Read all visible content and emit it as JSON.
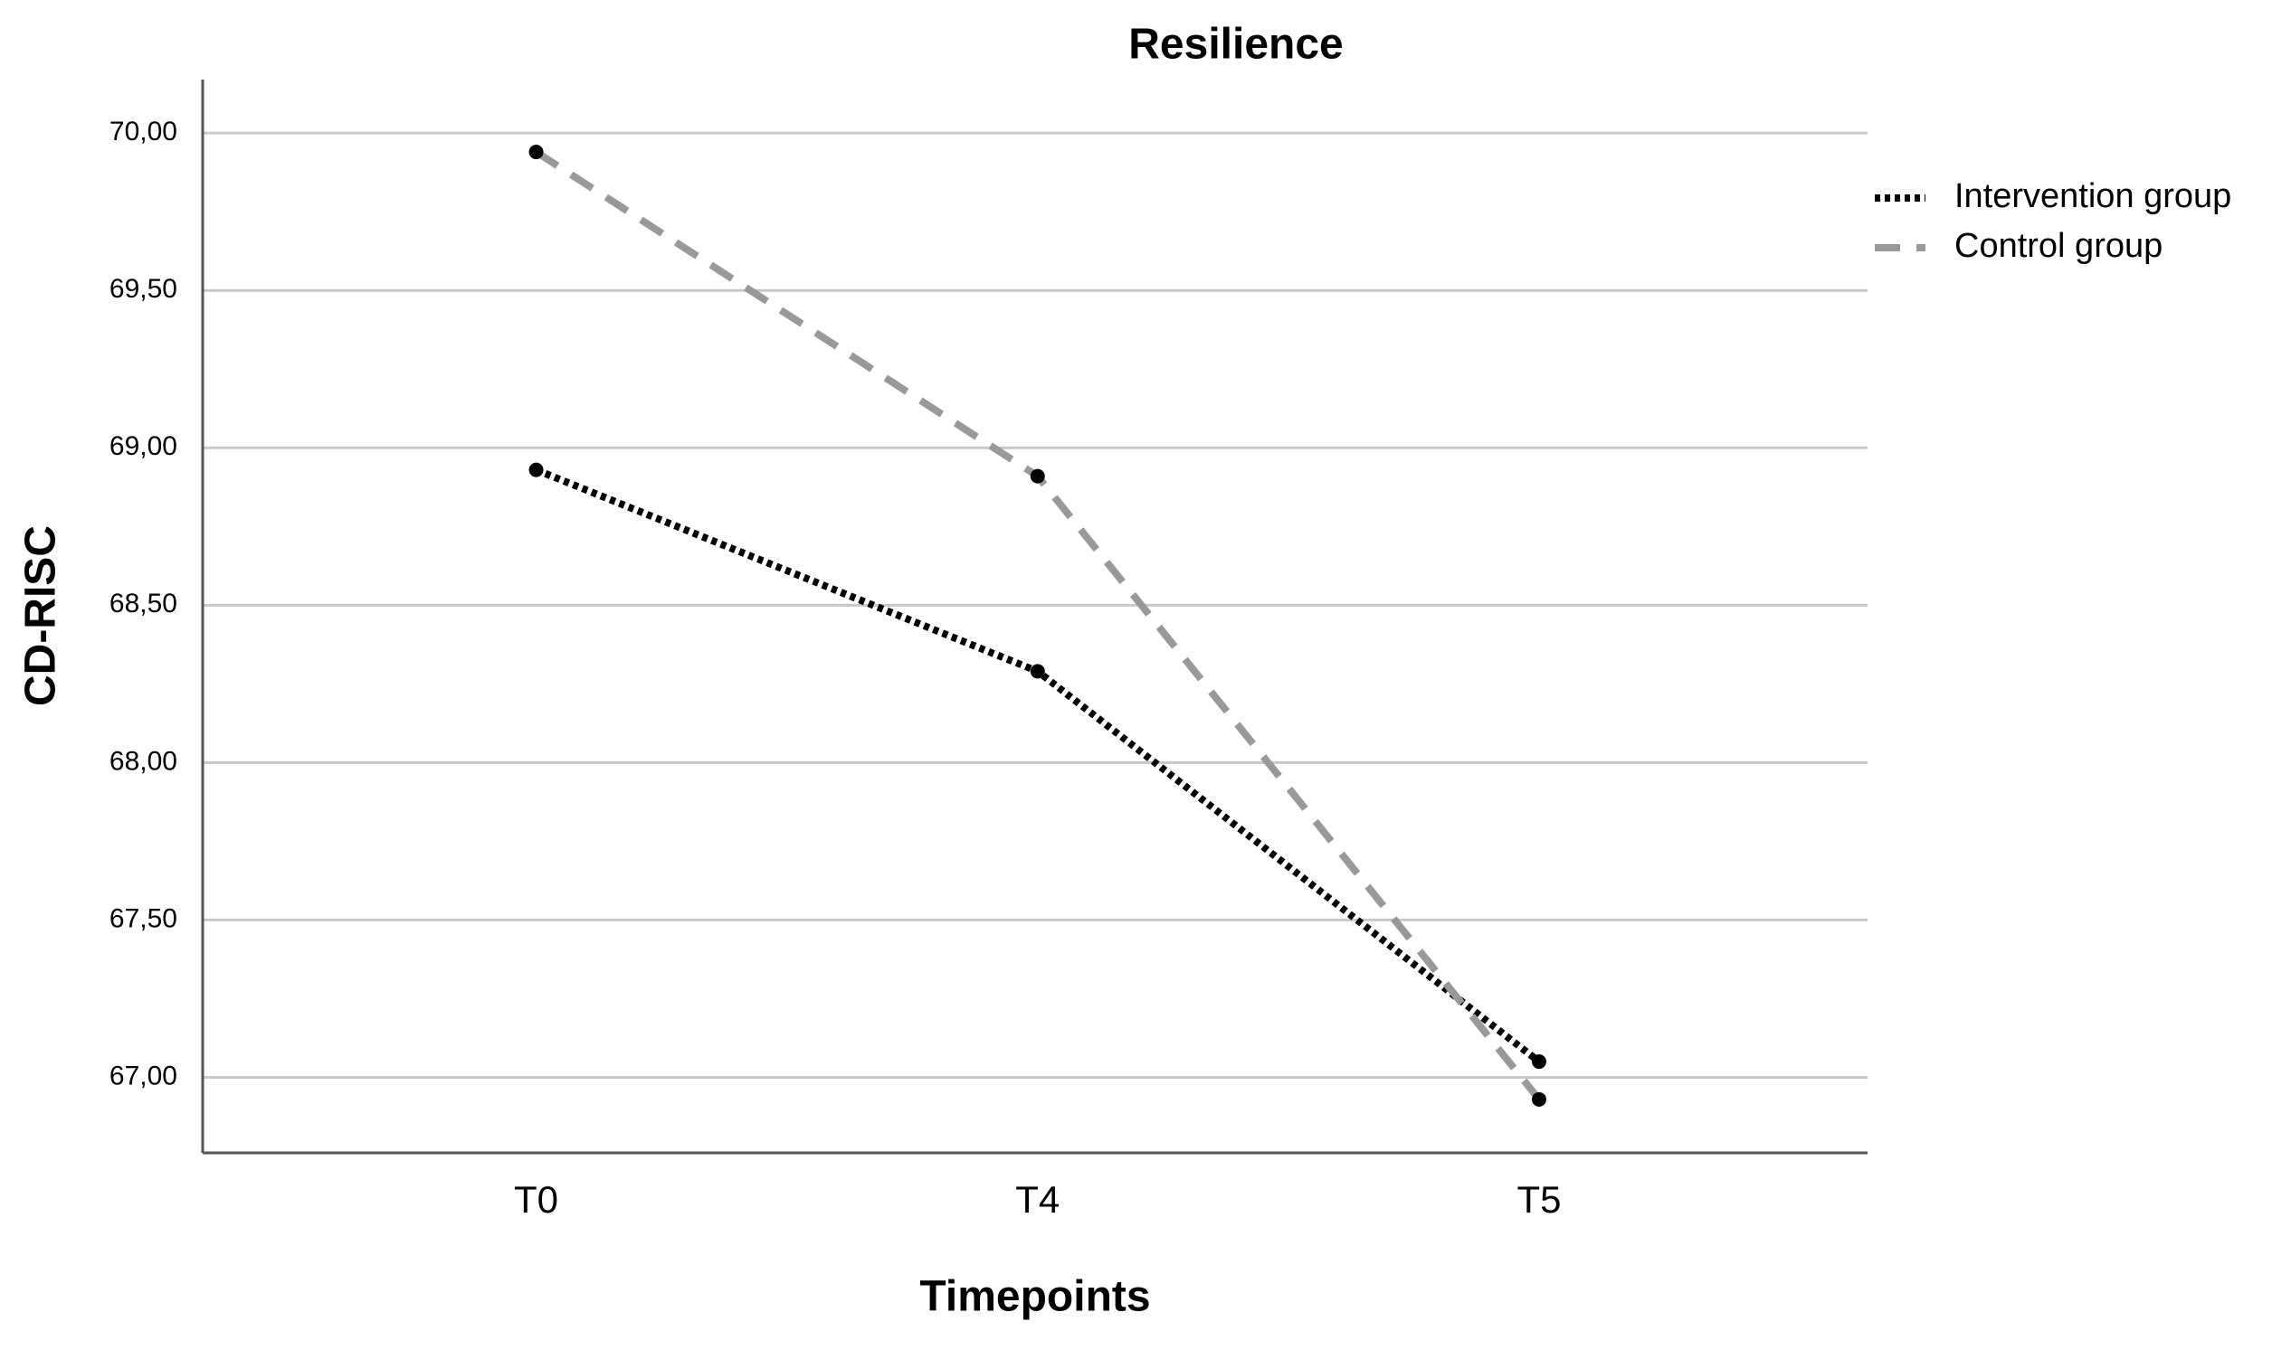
{
  "chart_data": {
    "type": "line",
    "title": "Resilience",
    "x_label": "Timepoints",
    "y_label": "CD-RISC",
    "categories": [
      "T0",
      "T4",
      "T5"
    ],
    "series": [
      {
        "name": "Intervention group",
        "color": "#000000",
        "line_style": "dotted",
        "values": [
          68.93,
          68.29,
          67.05
        ]
      },
      {
        "name": "Control group",
        "color": "#999999",
        "line_style": "dashed",
        "values": [
          69.94,
          68.91,
          66.93
        ]
      }
    ],
    "ylim": [
      66.76,
      70.17
    ],
    "yticks": [
      {
        "value": 67,
        "label": "67,00"
      },
      {
        "value": 67.5,
        "label": "67,50"
      },
      {
        "value": 68,
        "label": "68,00"
      },
      {
        "value": 68.5,
        "label": "68,50"
      },
      {
        "value": 69,
        "label": "69,00"
      },
      {
        "value": 69.5,
        "label": "69,50"
      },
      {
        "value": 70,
        "label": "70,00"
      }
    ],
    "grid": true,
    "legend": "right"
  }
}
